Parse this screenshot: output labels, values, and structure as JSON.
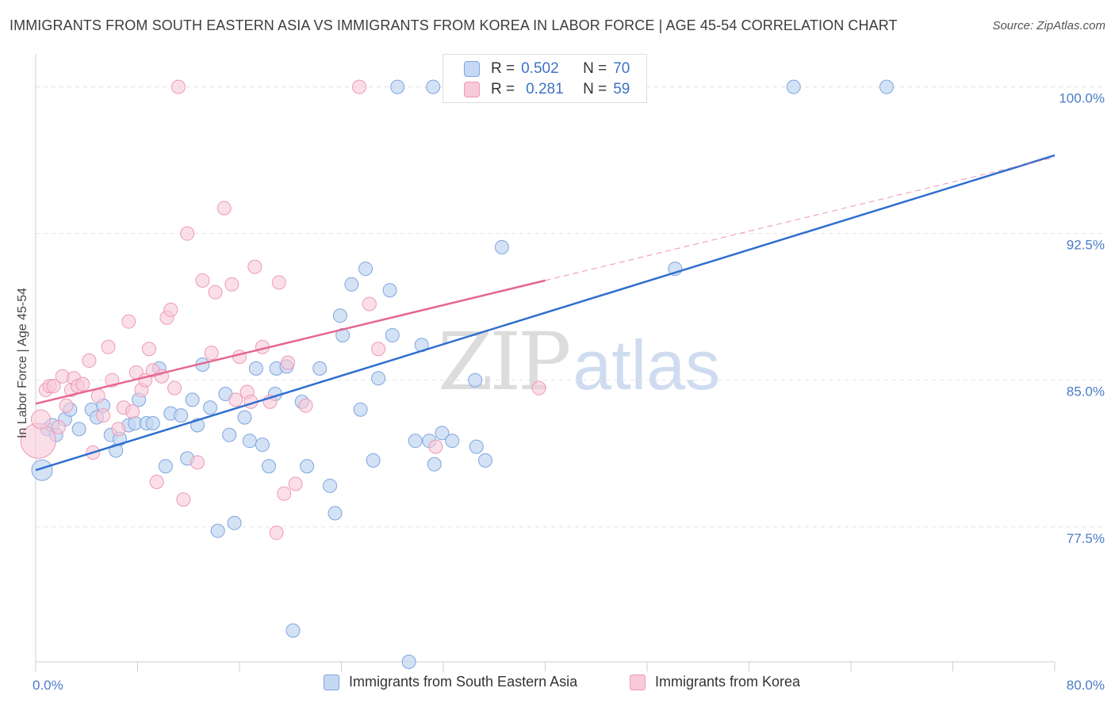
{
  "title": "IMMIGRANTS FROM SOUTH EASTERN ASIA VS IMMIGRANTS FROM KOREA IN LABOR FORCE | AGE 45-54 CORRELATION CHART",
  "source": "Source: ZipAtlas.com",
  "watermark": {
    "zip": "ZIP",
    "atlas": "atlas"
  },
  "legend_stats": [
    {
      "r_label": "R =",
      "r_value": "0.502",
      "n_label": "N =",
      "n_value": "70"
    },
    {
      "r_label": "R =",
      "r_value": "0.281",
      "n_label": "N =",
      "n_value": "59"
    }
  ],
  "colors": {
    "blue_fill": "#c5d8f3",
    "blue_stroke": "#7ea6df",
    "blue_line": "#2f6fcf",
    "pink_fill": "#f8cad8",
    "pink_stroke": "#ee9ab5",
    "pink_line": "#e5678f",
    "grid": "#e2e2e2",
    "tick_label": "#4a7cc9"
  },
  "chart_data": {
    "type": "scatter",
    "title": "IMMIGRANTS FROM SOUTH EASTERN ASIA VS IMMIGRANTS FROM KOREA IN LABOR FORCE | AGE 45-54 CORRELATION CHART",
    "xlabel": "",
    "ylabel": "In Labor Force | Age 45-54",
    "xlim": [
      0,
      80
    ],
    "ylim": [
      70.6,
      101.2
    ],
    "x_tick_labels": [
      "0.0%",
      "80.0%"
    ],
    "y_ticks": [
      77.5,
      85.0,
      92.5,
      100.0
    ],
    "y_tick_labels": [
      "77.5%",
      "85.0%",
      "92.5%",
      "100.0%"
    ],
    "grid": "horizontal dashed",
    "legend_position": "bottom",
    "series": [
      {
        "name": "Immigrants from South Eastern Asia",
        "color": "blue",
        "trend": {
          "x0": 0,
          "y0": 80.4,
          "x1": 80,
          "y1": 96.5
        },
        "points": [
          [
            0.5,
            80.4
          ],
          [
            0.9,
            82.5
          ],
          [
            1.3,
            82.7
          ],
          [
            1.6,
            82.2
          ],
          [
            2.3,
            83.0
          ],
          [
            2.7,
            83.5
          ],
          [
            3.4,
            82.5
          ],
          [
            4.4,
            83.5
          ],
          [
            4.8,
            83.1
          ],
          [
            5.3,
            83.7
          ],
          [
            5.9,
            82.2
          ],
          [
            6.3,
            81.4
          ],
          [
            6.6,
            82.0
          ],
          [
            7.3,
            82.7
          ],
          [
            7.8,
            82.8
          ],
          [
            8.1,
            84.0
          ],
          [
            8.7,
            82.8
          ],
          [
            9.2,
            82.8
          ],
          [
            9.7,
            85.6
          ],
          [
            10.2,
            80.6
          ],
          [
            10.6,
            83.3
          ],
          [
            11.4,
            83.2
          ],
          [
            11.9,
            81.0
          ],
          [
            12.3,
            84.0
          ],
          [
            12.7,
            82.7
          ],
          [
            13.1,
            85.8
          ],
          [
            13.7,
            83.6
          ],
          [
            14.3,
            77.3
          ],
          [
            14.9,
            84.3
          ],
          [
            15.2,
            82.2
          ],
          [
            15.6,
            77.7
          ],
          [
            16.4,
            83.1
          ],
          [
            16.8,
            81.9
          ],
          [
            17.3,
            85.6
          ],
          [
            17.8,
            81.7
          ],
          [
            18.3,
            80.6
          ],
          [
            18.8,
            84.3
          ],
          [
            18.9,
            85.6
          ],
          [
            19.7,
            85.7
          ],
          [
            20.2,
            72.2
          ],
          [
            20.9,
            83.9
          ],
          [
            21.3,
            80.6
          ],
          [
            22.3,
            85.6
          ],
          [
            23.1,
            79.6
          ],
          [
            23.5,
            78.2
          ],
          [
            23.9,
            88.3
          ],
          [
            24.1,
            87.3
          ],
          [
            24.8,
            89.9
          ],
          [
            25.5,
            83.5
          ],
          [
            25.9,
            90.7
          ],
          [
            26.5,
            80.9
          ],
          [
            26.9,
            85.1
          ],
          [
            27.8,
            89.6
          ],
          [
            28.0,
            87.3
          ],
          [
            28.4,
            100.0
          ],
          [
            29.3,
            70.6
          ],
          [
            29.8,
            81.9
          ],
          [
            30.3,
            86.8
          ],
          [
            30.9,
            81.9
          ],
          [
            31.2,
            100.0
          ],
          [
            31.3,
            80.7
          ],
          [
            31.9,
            82.3
          ],
          [
            32.7,
            81.9
          ],
          [
            34.5,
            85.0
          ],
          [
            34.6,
            81.6
          ],
          [
            35.3,
            80.9
          ],
          [
            36.6,
            91.8
          ],
          [
            50.2,
            90.7
          ],
          [
            59.5,
            100.0
          ],
          [
            66.8,
            100.0
          ]
        ]
      },
      {
        "name": "Immigrants from Korea",
        "color": "pink",
        "trend": {
          "x0": 0,
          "y0": 83.8,
          "x1": 40,
          "y1": 90.1,
          "extended_x1": 80,
          "extended_y1": 96.4
        },
        "points": [
          [
            0.2,
            81.9
          ],
          [
            0.4,
            83.0
          ],
          [
            0.8,
            84.5
          ],
          [
            1.1,
            84.7
          ],
          [
            1.4,
            84.7
          ],
          [
            1.8,
            82.6
          ],
          [
            2.1,
            85.2
          ],
          [
            2.4,
            83.7
          ],
          [
            2.8,
            84.5
          ],
          [
            3.0,
            85.1
          ],
          [
            3.3,
            84.7
          ],
          [
            3.7,
            84.8
          ],
          [
            4.2,
            86.0
          ],
          [
            4.5,
            81.3
          ],
          [
            4.9,
            84.2
          ],
          [
            5.3,
            83.2
          ],
          [
            5.7,
            86.7
          ],
          [
            6.0,
            85.0
          ],
          [
            6.5,
            82.5
          ],
          [
            6.9,
            83.6
          ],
          [
            7.3,
            88.0
          ],
          [
            7.6,
            83.4
          ],
          [
            7.9,
            85.4
          ],
          [
            8.3,
            84.5
          ],
          [
            8.6,
            85.0
          ],
          [
            8.9,
            86.6
          ],
          [
            9.2,
            85.5
          ],
          [
            9.5,
            79.8
          ],
          [
            9.9,
            85.2
          ],
          [
            10.3,
            88.2
          ],
          [
            10.6,
            88.6
          ],
          [
            10.9,
            84.6
          ],
          [
            11.2,
            100.0
          ],
          [
            11.6,
            78.9
          ],
          [
            11.9,
            92.5
          ],
          [
            12.7,
            80.8
          ],
          [
            13.1,
            90.1
          ],
          [
            13.8,
            86.4
          ],
          [
            14.1,
            89.5
          ],
          [
            14.8,
            93.8
          ],
          [
            15.4,
            89.9
          ],
          [
            15.7,
            84.0
          ],
          [
            16.0,
            86.2
          ],
          [
            16.6,
            84.4
          ],
          [
            16.9,
            83.9
          ],
          [
            17.2,
            90.8
          ],
          [
            17.8,
            86.7
          ],
          [
            18.4,
            83.9
          ],
          [
            18.9,
            77.2
          ],
          [
            19.1,
            90.0
          ],
          [
            19.5,
            79.2
          ],
          [
            19.8,
            85.9
          ],
          [
            20.4,
            79.7
          ],
          [
            21.2,
            83.7
          ],
          [
            25.4,
            100.0
          ],
          [
            26.2,
            88.9
          ],
          [
            26.9,
            86.6
          ],
          [
            31.4,
            81.6
          ],
          [
            39.5,
            84.6
          ]
        ]
      }
    ]
  }
}
